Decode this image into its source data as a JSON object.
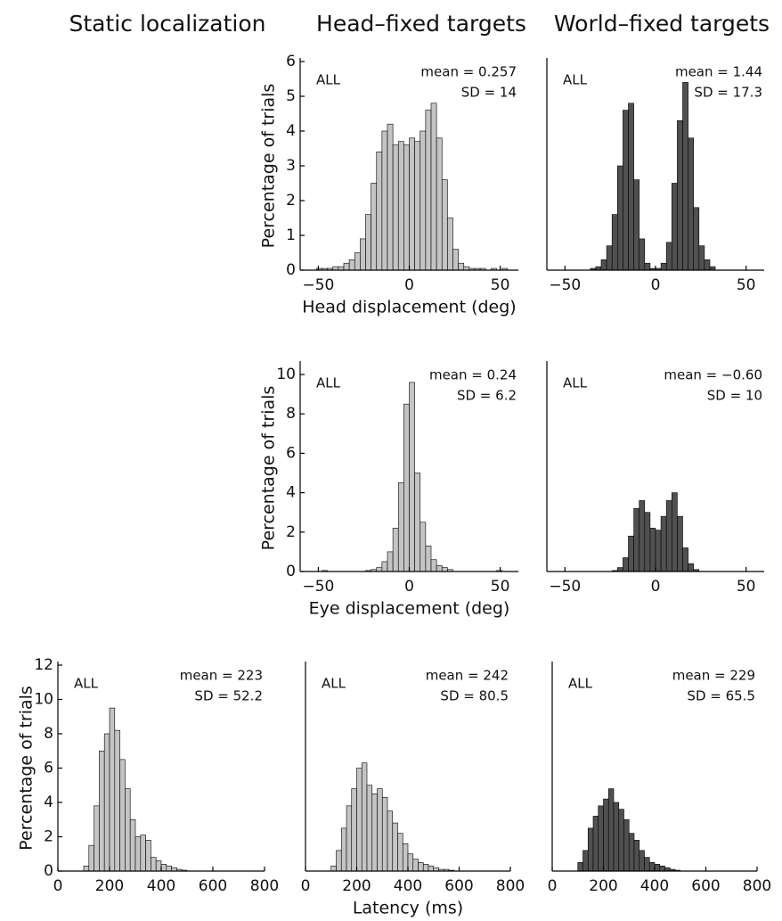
{
  "column_titles": [
    "Static localization",
    "Head–fixed targets",
    "World–fixed targets"
  ],
  "chart_data": [
    {
      "type": "histogram",
      "color": "#c4c4c4",
      "ylabel": "Percentage of trials",
      "xlabel": "Head displacement (deg)",
      "annotations": [
        "ALL",
        "mean = 0.257",
        "SD = 14"
      ],
      "bins": [
        -60,
        -57,
        -54,
        -51,
        -48,
        -45,
        -42,
        -39,
        -36,
        -33,
        -30,
        -27,
        -24,
        -21,
        -18,
        -15,
        -12,
        -9,
        -6,
        -3,
        0,
        3,
        6,
        9,
        12,
        15,
        18,
        21,
        24,
        27,
        30,
        33,
        36,
        39,
        42,
        45,
        48,
        51,
        54,
        57,
        60
      ],
      "values": [
        0,
        0,
        0,
        0.05,
        0.05,
        0.05,
        0.1,
        0.1,
        0.2,
        0.3,
        0.5,
        0.9,
        1.6,
        2.5,
        3.4,
        4.0,
        4.2,
        3.6,
        3.7,
        3.6,
        3.8,
        3.7,
        4.0,
        4.6,
        4.8,
        3.8,
        2.6,
        1.5,
        0.6,
        0.2,
        0.1,
        0.05,
        0.05,
        0.05,
        0,
        0.05,
        0,
        0.05,
        0,
        0
      ],
      "xlim": [
        -60,
        60
      ],
      "ylim": [
        0,
        6
      ],
      "xticks": [
        {
          "value": -50,
          "label": "−50"
        },
        0,
        50
      ],
      "yticks": [
        0,
        1,
        2,
        3,
        4,
        5,
        6
      ]
    },
    {
      "type": "histogram",
      "color": "#505050",
      "annotations": [
        "ALL",
        "mean = 1.44",
        "SD = 17.3"
      ],
      "bins": [
        -60,
        -57,
        -54,
        -51,
        -48,
        -45,
        -42,
        -39,
        -36,
        -33,
        -30,
        -27,
        -24,
        -21,
        -18,
        -15,
        -12,
        -9,
        -6,
        -3,
        0,
        3,
        6,
        9,
        12,
        15,
        18,
        21,
        24,
        27,
        30,
        33,
        36,
        39,
        42,
        45,
        48,
        51,
        54,
        57,
        60
      ],
      "values": [
        0,
        0,
        0,
        0,
        0,
        0,
        0,
        0,
        0.05,
        0.1,
        0.3,
        0.7,
        1.6,
        3.0,
        4.6,
        4.8,
        2.6,
        0.9,
        0.2,
        0.05,
        0.05,
        0.2,
        0.8,
        2.5,
        4.3,
        5.4,
        3.8,
        1.8,
        0.7,
        0.3,
        0.1,
        0,
        0,
        0,
        0,
        0,
        0,
        0,
        0,
        0
      ],
      "xlim": [
        -60,
        60
      ],
      "ylim": [
        0,
        6
      ],
      "xticks": [
        {
          "value": -50,
          "label": "−50"
        },
        0,
        50
      ]
    },
    {
      "type": "histogram",
      "color": "#c4c4c4",
      "ylabel": "Percentage of trials",
      "xlabel": "Eye displacement (deg)",
      "annotations": [
        "ALL",
        "mean = 0.24",
        "SD = 6.2"
      ],
      "bins": [
        -60,
        -57,
        -54,
        -51,
        -48,
        -45,
        -42,
        -39,
        -36,
        -33,
        -30,
        -27,
        -24,
        -21,
        -18,
        -15,
        -12,
        -9,
        -6,
        -3,
        0,
        3,
        6,
        9,
        12,
        15,
        18,
        21,
        24,
        27,
        30,
        33,
        36,
        39,
        42,
        45,
        48,
        51,
        54,
        57,
        60
      ],
      "values": [
        0,
        0,
        0,
        0,
        0.05,
        0,
        0,
        0,
        0,
        0,
        0,
        0,
        0.05,
        0.1,
        0.2,
        0.5,
        1.0,
        2.2,
        4.5,
        8.5,
        9.6,
        5.0,
        2.5,
        1.3,
        0.6,
        0.3,
        0.2,
        0.1,
        0,
        0,
        0,
        0,
        0,
        0,
        0,
        0,
        0.05,
        0,
        0,
        0
      ],
      "xlim": [
        -60,
        60
      ],
      "ylim": [
        0,
        10.5
      ],
      "xticks": [
        {
          "value": -50,
          "label": "−50"
        },
        0,
        50
      ],
      "yticks": [
        0,
        2,
        4,
        6,
        8,
        10
      ]
    },
    {
      "type": "histogram",
      "color": "#505050",
      "annotations": [
        "ALL",
        "mean = −0.60",
        "SD = 10"
      ],
      "bins": [
        -60,
        -57,
        -54,
        -51,
        -48,
        -45,
        -42,
        -39,
        -36,
        -33,
        -30,
        -27,
        -24,
        -21,
        -18,
        -15,
        -12,
        -9,
        -6,
        -3,
        0,
        3,
        6,
        9,
        12,
        15,
        18,
        21,
        24,
        27,
        30,
        33,
        36,
        39,
        42,
        45,
        48,
        51,
        54,
        57,
        60
      ],
      "values": [
        0,
        0,
        0,
        0,
        0,
        0,
        0,
        0,
        0,
        0,
        0,
        0,
        0.05,
        0.2,
        0.7,
        1.8,
        3.2,
        3.6,
        3.0,
        2.2,
        2.1,
        2.8,
        3.6,
        4.0,
        2.8,
        1.2,
        0.4,
        0.1,
        0,
        0,
        0,
        0,
        0,
        0,
        0,
        0,
        0,
        0,
        0,
        0
      ],
      "xlim": [
        -60,
        60
      ],
      "ylim": [
        0,
        10.5
      ],
      "xticks": [
        {
          "value": -50,
          "label": "−50"
        },
        0,
        50
      ]
    },
    {
      "type": "histogram",
      "color": "#c4c4c4",
      "ylabel": "Percentage of trials",
      "annotations": [
        "ALL",
        "mean = 223",
        "SD = 52.2"
      ],
      "bins": [
        0,
        20,
        40,
        60,
        80,
        100,
        120,
        140,
        160,
        180,
        200,
        220,
        240,
        260,
        280,
        300,
        320,
        340,
        360,
        380,
        400,
        420,
        440,
        460,
        480,
        500,
        520,
        540,
        560,
        580,
        600,
        620,
        640,
        660,
        680,
        700,
        720,
        740,
        760,
        780,
        800
      ],
      "values": [
        0,
        0,
        0,
        0,
        0,
        0.3,
        1.5,
        3.8,
        7.0,
        8.0,
        9.5,
        8.2,
        6.5,
        4.8,
        3.0,
        2.0,
        2.1,
        1.8,
        0.8,
        0.6,
        0.4,
        0.3,
        0.2,
        0.1,
        0.05,
        0,
        0,
        0,
        0,
        0,
        0,
        0,
        0,
        0,
        0,
        0,
        0,
        0,
        0,
        0
      ],
      "xlim": [
        0,
        800
      ],
      "ylim": [
        0,
        12
      ],
      "xticks": [
        0,
        200,
        400,
        600,
        800
      ],
      "yticks": [
        0,
        2,
        4,
        6,
        8,
        10,
        12
      ]
    },
    {
      "type": "histogram",
      "color": "#c4c4c4",
      "xlabel": "Latency (ms)",
      "annotations": [
        "ALL",
        "mean = 242",
        "SD = 80.5"
      ],
      "bins": [
        0,
        20,
        40,
        60,
        80,
        100,
        120,
        140,
        160,
        180,
        200,
        220,
        240,
        260,
        280,
        300,
        320,
        340,
        360,
        380,
        400,
        420,
        440,
        460,
        480,
        500,
        520,
        540,
        560,
        580,
        600,
        620,
        640,
        660,
        680,
        700,
        720,
        740,
        760,
        780,
        800
      ],
      "values": [
        0,
        0,
        0,
        0,
        0,
        0.3,
        1.2,
        2.5,
        3.8,
        4.8,
        6.0,
        6.3,
        5.0,
        4.5,
        4.8,
        4.3,
        3.5,
        2.8,
        2.2,
        1.6,
        1.0,
        0.7,
        0.5,
        0.4,
        0.3,
        0.2,
        0.1,
        0.1,
        0.05,
        0,
        0,
        0,
        0,
        0,
        0,
        0,
        0,
        0,
        0,
        0
      ],
      "xlim": [
        0,
        800
      ],
      "ylim": [
        0,
        12
      ],
      "xticks": [
        0,
        200,
        400,
        600,
        800
      ]
    },
    {
      "type": "histogram",
      "color": "#505050",
      "annotations": [
        "ALL",
        "mean = 229",
        "SD = 65.5"
      ],
      "bins": [
        0,
        20,
        40,
        60,
        80,
        100,
        120,
        140,
        160,
        180,
        200,
        220,
        240,
        260,
        280,
        300,
        320,
        340,
        360,
        380,
        400,
        420,
        440,
        460,
        480,
        500,
        520,
        540,
        560,
        580,
        600,
        620,
        640,
        660,
        680,
        700,
        720,
        740,
        760,
        780,
        800
      ],
      "values": [
        0,
        0,
        0,
        0,
        0,
        0.5,
        1.2,
        2.5,
        3.2,
        3.8,
        4.2,
        4.8,
        4.0,
        3.6,
        3.0,
        2.2,
        1.8,
        1.2,
        0.8,
        0.5,
        0.4,
        0.3,
        0.2,
        0.1,
        0.05,
        0,
        0,
        0,
        0,
        0,
        0,
        0,
        0,
        0,
        0,
        0,
        0,
        0,
        0,
        0
      ],
      "xlim": [
        0,
        800
      ],
      "ylim": [
        0,
        12
      ],
      "xticks": [
        0,
        200,
        400,
        600,
        800
      ]
    }
  ]
}
